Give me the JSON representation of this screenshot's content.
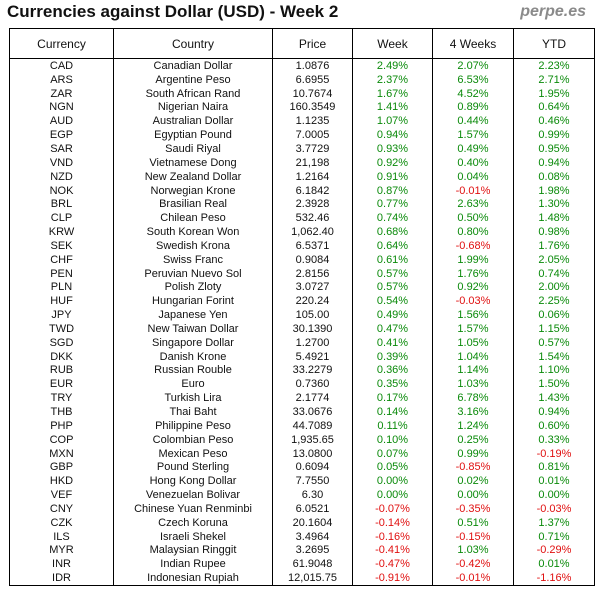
{
  "header": {
    "title": "Currencies against Dollar (USD) - Week 2",
    "brand": "perpe.es"
  },
  "colors": {
    "positive": "#0a8a0a",
    "negative": "#e01010"
  },
  "chart_data": {
    "type": "table",
    "title": "Currencies against Dollar (USD) - Week 2",
    "columns": [
      "Currency",
      "Country",
      "Price",
      "Week",
      "4 Weeks",
      "YTD"
    ],
    "rows": [
      [
        "CAD",
        "Canadian Dollar",
        "1.0876",
        "2.49%",
        "2.07%",
        "2.23%"
      ],
      [
        "ARS",
        "Argentine Peso",
        "6.6955",
        "2.37%",
        "6.53%",
        "2.71%"
      ],
      [
        "ZAR",
        "South African Rand",
        "10.7674",
        "1.67%",
        "4.52%",
        "1.95%"
      ],
      [
        "NGN",
        "Nigerian Naira",
        "160.3549",
        "1.41%",
        "0.89%",
        "0.64%"
      ],
      [
        "AUD",
        "Australian Dollar",
        "1.1235",
        "1.07%",
        "0.44%",
        "0.46%"
      ],
      [
        "EGP",
        "Egyptian Pound",
        "7.0005",
        "0.94%",
        "1.57%",
        "0.99%"
      ],
      [
        "SAR",
        "Saudi Riyal",
        "3.7729",
        "0.93%",
        "0.49%",
        "0.95%"
      ],
      [
        "VND",
        "Vietnamese Dong",
        "21,198",
        "0.92%",
        "0.40%",
        "0.94%"
      ],
      [
        "NZD",
        "New Zealand Dollar",
        "1.2164",
        "0.91%",
        "0.04%",
        "0.08%"
      ],
      [
        "NOK",
        "Norwegian Krone",
        "6.1842",
        "0.87%",
        "-0.01%",
        "1.98%"
      ],
      [
        "BRL",
        "Brasilian Real",
        "2.3928",
        "0.77%",
        "2.63%",
        "1.30%"
      ],
      [
        "CLP",
        "Chilean Peso",
        "532.46",
        "0.74%",
        "0.50%",
        "1.48%"
      ],
      [
        "KRW",
        "South Korean Won",
        "1,062.40",
        "0.68%",
        "0.80%",
        "0.98%"
      ],
      [
        "SEK",
        "Swedish Krona",
        "6.5371",
        "0.64%",
        "-0.68%",
        "1.76%"
      ],
      [
        "CHF",
        "Swiss Franc",
        "0.9084",
        "0.61%",
        "1.99%",
        "2.05%"
      ],
      [
        "PEN",
        "Peruvian Nuevo Sol",
        "2.8156",
        "0.57%",
        "1.76%",
        "0.74%"
      ],
      [
        "PLN",
        "Polish Zloty",
        "3.0727",
        "0.57%",
        "0.92%",
        "2.00%"
      ],
      [
        "HUF",
        "Hungarian Forint",
        "220.24",
        "0.54%",
        "-0.03%",
        "2.25%"
      ],
      [
        "JPY",
        "Japanese Yen",
        "105.00",
        "0.49%",
        "1.56%",
        "0.06%"
      ],
      [
        "TWD",
        "New Taiwan Dollar",
        "30.1390",
        "0.47%",
        "1.57%",
        "1.15%"
      ],
      [
        "SGD",
        "Singapore Dollar",
        "1.2700",
        "0.41%",
        "1.05%",
        "0.57%"
      ],
      [
        "DKK",
        "Danish Krone",
        "5.4921",
        "0.39%",
        "1.04%",
        "1.54%"
      ],
      [
        "RUB",
        "Russian Rouble",
        "33.2279",
        "0.36%",
        "1.14%",
        "1.10%"
      ],
      [
        "EUR",
        "Euro",
        "0.7360",
        "0.35%",
        "1.03%",
        "1.50%"
      ],
      [
        "TRY",
        "Turkish Lira",
        "2.1774",
        "0.17%",
        "6.78%",
        "1.43%"
      ],
      [
        "THB",
        "Thai Baht",
        "33.0676",
        "0.14%",
        "3.16%",
        "0.94%"
      ],
      [
        "PHP",
        "Philippine Peso",
        "44.7089",
        "0.11%",
        "1.24%",
        "0.60%"
      ],
      [
        "COP",
        "Colombian Peso",
        "1,935.65",
        "0.10%",
        "0.25%",
        "0.33%"
      ],
      [
        "MXN",
        "Mexican Peso",
        "13.0800",
        "0.07%",
        "0.99%",
        "-0.19%"
      ],
      [
        "GBP",
        "Pound Sterling",
        "0.6094",
        "0.05%",
        "-0.85%",
        "0.81%"
      ],
      [
        "HKD",
        "Hong Kong Dollar",
        "7.7550",
        "0.00%",
        "0.02%",
        "0.01%"
      ],
      [
        "VEF",
        "Venezuelan Bolivar",
        "6.30",
        "0.00%",
        "0.00%",
        "0.00%"
      ],
      [
        "CNY",
        "Chinese Yuan Renminbi",
        "6.0521",
        "-0.07%",
        "-0.35%",
        "-0.03%"
      ],
      [
        "CZK",
        "Czech Koruna",
        "20.1604",
        "-0.14%",
        "0.51%",
        "1.37%"
      ],
      [
        "ILS",
        "Israeli Shekel",
        "3.4964",
        "-0.16%",
        "-0.15%",
        "0.71%"
      ],
      [
        "MYR",
        "Malaysian Ringgit",
        "3.2695",
        "-0.41%",
        "1.03%",
        "-0.29%"
      ],
      [
        "INR",
        "Indian Rupee",
        "61.9048",
        "-0.47%",
        "-0.42%",
        "0.01%"
      ],
      [
        "IDR",
        "Indonesian Rupiah",
        "12,015.75",
        "-0.91%",
        "-0.01%",
        "-1.16%"
      ]
    ]
  }
}
